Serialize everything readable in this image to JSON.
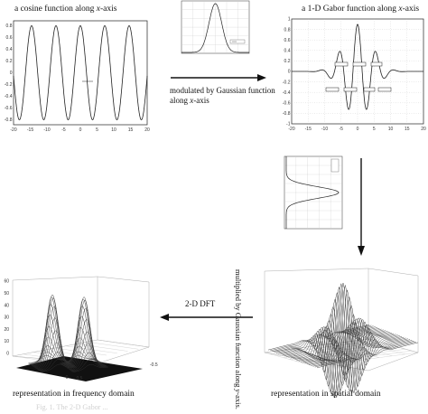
{
  "panels": {
    "cosine": {
      "title_prefix": "a cosine function along ",
      "title_var": "x",
      "title_suffix": "-axis",
      "x_ticks": [
        "-20",
        "-15",
        "-10",
        "-5",
        "0",
        "5",
        "10",
        "15",
        "20"
      ],
      "y_ticks": [
        "0.8",
        "0.6",
        "0.4",
        "0.2",
        "0",
        "-0.2",
        "-0.4",
        "-0.6",
        "-0.8"
      ]
    },
    "gabor": {
      "title_prefix": "a 1-D Gabor function along ",
      "title_var": "x",
      "title_suffix": "-axis",
      "x_ticks": [
        "-20",
        "-15",
        "-10",
        "-5",
        "0",
        "5",
        "10",
        "15",
        "20"
      ],
      "y_ticks": [
        "1",
        "0.8",
        "0.6",
        "0.4",
        "0.2",
        "0",
        "-0.2",
        "-0.4",
        "-0.6",
        "-0.8",
        "-1"
      ]
    },
    "spatial": {
      "caption": "representation in spatial domain"
    },
    "frequency": {
      "caption": "representation in frequency domain",
      "z_ticks": [
        "60",
        "50",
        "40",
        "30",
        "20",
        "10",
        "0"
      ],
      "x_ticks": [
        "0",
        "0.5",
        "-0.5"
      ]
    }
  },
  "arrows": {
    "modulated": {
      "line1": "modulated by Gaussian function",
      "line2_prefix": "along ",
      "line2_var": "x",
      "line2_suffix": "-axis"
    },
    "multiplied": {
      "text_prefix": "multiplied by Gaussian function along ",
      "text_var": "y",
      "text_suffix": "-axis."
    },
    "dft": {
      "label": "2-D DFT"
    }
  },
  "figure_caption": "Fig. 1. The 2-D Gabor ..."
}
